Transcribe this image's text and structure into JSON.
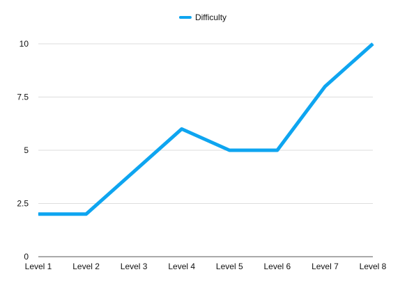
{
  "chart_data": {
    "type": "line",
    "categories": [
      "Level 1",
      "Level 2",
      "Level 3",
      "Level 4",
      "Level 5",
      "Level 6",
      "Level 7",
      "Level 8"
    ],
    "series": [
      {
        "name": "Difficulty",
        "values": [
          2,
          2,
          4,
          6,
          5,
          5,
          8,
          10
        ],
        "color": "#0ea5f0"
      }
    ],
    "title": "",
    "xlabel": "",
    "ylabel": "",
    "ylim": [
      0,
      10
    ],
    "yticks": [
      {
        "value": 0,
        "label": "0"
      },
      {
        "value": 2.5,
        "label": "2.5"
      },
      {
        "value": 5,
        "label": "5"
      },
      {
        "value": 7.5,
        "label": "7.5"
      },
      {
        "value": 10,
        "label": "10"
      }
    ],
    "grid": true,
    "legend": "top-center",
    "gridline_color": "#dddddd",
    "axis_color": "#555555"
  }
}
